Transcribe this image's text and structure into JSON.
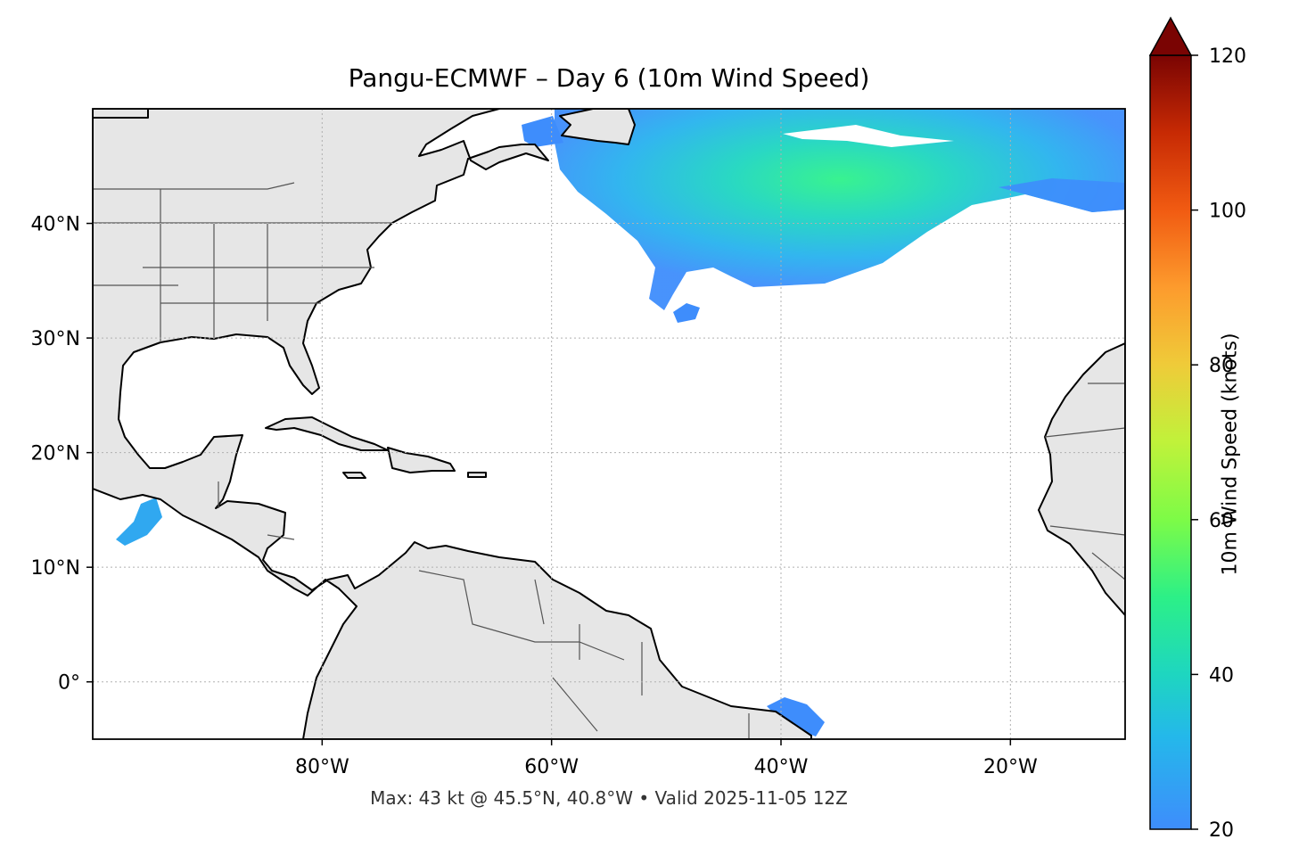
{
  "title": "Pangu-ECMWF – Day 6 (10m Wind Speed)",
  "footer": "Max: 43 kt @ 45.5°N, 40.8°W • Valid 2025-11-05 12Z",
  "map": {
    "extent": {
      "lon_min": -100,
      "lon_max": -10,
      "lat_min": -5,
      "lat_max": 50
    },
    "lon_ticks": [
      {
        "value": -80,
        "label": "80°W"
      },
      {
        "value": -60,
        "label": "60°W"
      },
      {
        "value": -40,
        "label": "40°W"
      },
      {
        "value": -20,
        "label": "20°W"
      }
    ],
    "lat_ticks": [
      {
        "value": 40,
        "label": "40°N"
      },
      {
        "value": 30,
        "label": "30°N"
      },
      {
        "value": 20,
        "label": "20°N"
      },
      {
        "value": 10,
        "label": "10°N"
      },
      {
        "value": 0,
        "label": "0°"
      }
    ],
    "land_color": "#e6e6e6",
    "ocean_color": "#ffffff",
    "gridlines": true
  },
  "colorbar": {
    "label": "10m Wind Speed (knots)",
    "min": 20,
    "max": 120,
    "extend": "max",
    "ticks": [
      {
        "value": 20,
        "label": "20"
      },
      {
        "value": 40,
        "label": "40"
      },
      {
        "value": 60,
        "label": "60"
      },
      {
        "value": 80,
        "label": "80"
      },
      {
        "value": 100,
        "label": "100"
      },
      {
        "value": 120,
        "label": "120"
      }
    ],
    "colormap": "turbo"
  },
  "max_wind": {
    "value_kt": 43,
    "lat": 45.5,
    "lon": -40.8
  }
}
